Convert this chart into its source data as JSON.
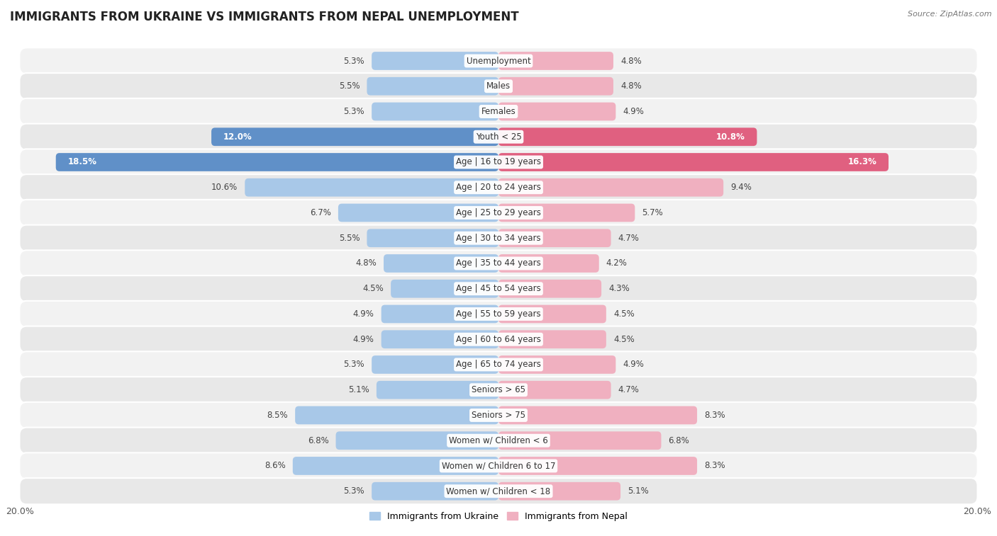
{
  "title": "IMMIGRANTS FROM UKRAINE VS IMMIGRANTS FROM NEPAL UNEMPLOYMENT",
  "source": "Source: ZipAtlas.com",
  "categories": [
    "Unemployment",
    "Males",
    "Females",
    "Youth < 25",
    "Age | 16 to 19 years",
    "Age | 20 to 24 years",
    "Age | 25 to 29 years",
    "Age | 30 to 34 years",
    "Age | 35 to 44 years",
    "Age | 45 to 54 years",
    "Age | 55 to 59 years",
    "Age | 60 to 64 years",
    "Age | 65 to 74 years",
    "Seniors > 65",
    "Seniors > 75",
    "Women w/ Children < 6",
    "Women w/ Children 6 to 17",
    "Women w/ Children < 18"
  ],
  "ukraine_values": [
    5.3,
    5.5,
    5.3,
    12.0,
    18.5,
    10.6,
    6.7,
    5.5,
    4.8,
    4.5,
    4.9,
    4.9,
    5.3,
    5.1,
    8.5,
    6.8,
    8.6,
    5.3
  ],
  "nepal_values": [
    4.8,
    4.8,
    4.9,
    10.8,
    16.3,
    9.4,
    5.7,
    4.7,
    4.2,
    4.3,
    4.5,
    4.5,
    4.9,
    4.7,
    8.3,
    6.8,
    8.3,
    5.1
  ],
  "ukraine_color_normal": "#a8c8e8",
  "nepal_color_normal": "#f0b0c0",
  "ukraine_color_highlight": "#6090c8",
  "nepal_color_highlight": "#e06080",
  "highlight_rows": [
    3,
    4
  ],
  "row_colors": [
    "#f2f2f2",
    "#e8e8e8"
  ],
  "xlim": 20.0,
  "bar_height": 0.72,
  "legend_ukraine": "Immigrants from Ukraine",
  "legend_nepal": "Immigrants from Nepal",
  "title_fontsize": 12,
  "source_fontsize": 8,
  "label_fontsize": 8.5,
  "value_fontsize": 8.5
}
